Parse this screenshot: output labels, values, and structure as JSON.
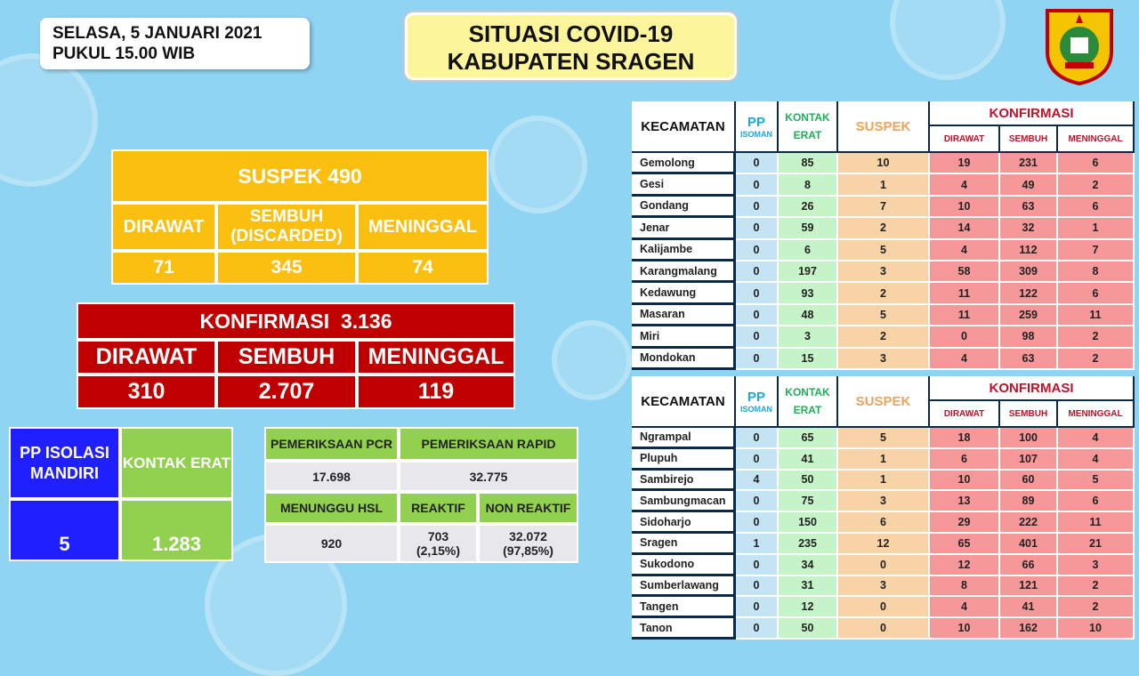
{
  "header": {
    "date_line1": "SELASA, 5 JANUARI 2021",
    "date_line2": "PUKUL 15.00 WIB",
    "title_line1": "SITUASI COVID-19",
    "title_line2": "KABUPATEN SRAGEN",
    "logo": "kabupaten-sragen-crest"
  },
  "suspek": {
    "title": "SUSPEK 490",
    "labels": [
      "DIRAWAT",
      "SEMBUH (DISCARDED)",
      "MENINGGAL"
    ],
    "values": [
      "71",
      "345",
      "74"
    ],
    "color": "#fbbf0f"
  },
  "konfirmasi": {
    "title": "KONFIRMASI  3.136",
    "labels": [
      "DIRAWAT",
      "SEMBUH",
      "MENINGGAL"
    ],
    "values": [
      "310",
      "2.707",
      "119"
    ],
    "color": "#c00000"
  },
  "pp_isolasi": {
    "label": "PP ISOLASI MANDIRI",
    "value": "5",
    "color": "#1f1fff"
  },
  "kontak_erat": {
    "label": "KONTAK ERAT",
    "value": "1.283",
    "color": "#92d050"
  },
  "pemeriksaan": {
    "pcr_label": "PEMERIKSAAN PCR",
    "pcr_value": "17.698",
    "rapid_label": "PEMERIKSAAN RAPID",
    "rapid_value": "32.775",
    "menunggu_label": "MENUNGGU HSL",
    "menunggu_value": "920",
    "reaktif_label": "REAKTIF",
    "reaktif_value": "703",
    "reaktif_pct": "(2,15%)",
    "nonreaktif_label": "NON REAKTIF",
    "nonreaktif_value": "32.072",
    "nonreaktif_pct": "(97,85%)"
  },
  "table_headers": {
    "kecamatan": "KECAMATAN",
    "pp": "PP",
    "isoman": "ISOMAN",
    "kontak": "KONTAK",
    "erat": "ERAT",
    "suspek": "SUSPEK",
    "konfirmasi": "KONFIRMASI",
    "dirawat": "DIRAWAT",
    "sembuh": "SEMBUH",
    "meninggal": "MENINGGAL"
  },
  "tables": [
    [
      [
        "Gemolong",
        "0",
        "85",
        "10",
        "19",
        "231",
        "6"
      ],
      [
        "Gesi",
        "0",
        "8",
        "1",
        "4",
        "49",
        "2"
      ],
      [
        "Gondang",
        "0",
        "26",
        "7",
        "10",
        "63",
        "6"
      ],
      [
        "Jenar",
        "0",
        "59",
        "2",
        "14",
        "32",
        "1"
      ],
      [
        "Kalijambe",
        "0",
        "6",
        "5",
        "4",
        "112",
        "7"
      ],
      [
        "Karangmalang",
        "0",
        "197",
        "3",
        "58",
        "309",
        "8"
      ],
      [
        "Kedawung",
        "0",
        "93",
        "2",
        "11",
        "122",
        "6"
      ],
      [
        "Masaran",
        "0",
        "48",
        "5",
        "11",
        "259",
        "11"
      ],
      [
        "Miri",
        "0",
        "3",
        "2",
        "0",
        "98",
        "2"
      ],
      [
        "Mondokan",
        "0",
        "15",
        "3",
        "4",
        "63",
        "2"
      ]
    ],
    [
      [
        "Ngrampal",
        "0",
        "65",
        "5",
        "18",
        "100",
        "4"
      ],
      [
        "Plupuh",
        "0",
        "41",
        "1",
        "6",
        "107",
        "4"
      ],
      [
        "Sambirejo",
        "4",
        "50",
        "1",
        "10",
        "60",
        "5"
      ],
      [
        "Sambungmacan",
        "0",
        "75",
        "3",
        "13",
        "89",
        "6"
      ],
      [
        "Sidoharjo",
        "0",
        "150",
        "6",
        "29",
        "222",
        "11"
      ],
      [
        "Sragen",
        "1",
        "235",
        "12",
        "65",
        "401",
        "21"
      ],
      [
        "Sukodono",
        "0",
        "34",
        "0",
        "12",
        "66",
        "3"
      ],
      [
        "Sumberlawang",
        "0",
        "31",
        "3",
        "8",
        "121",
        "2"
      ],
      [
        "Tangen",
        "0",
        "12",
        "0",
        "4",
        "41",
        "2"
      ],
      [
        "Tanon",
        "0",
        "50",
        "0",
        "10",
        "162",
        "10"
      ]
    ]
  ]
}
